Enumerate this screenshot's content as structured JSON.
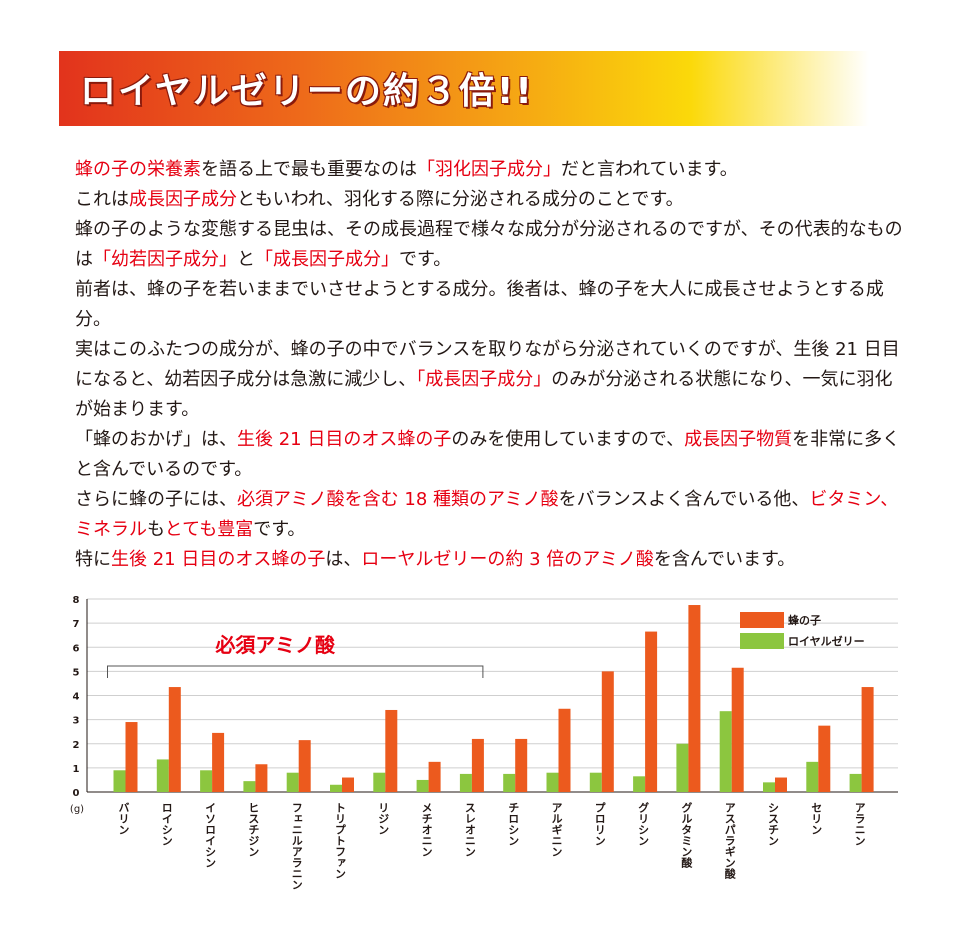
{
  "header": {
    "title": "ロイヤルゼリーの約３倍!!"
  },
  "colors": {
    "red": "#e60012",
    "orange": "#ec5a1e",
    "green": "#8cc63f"
  },
  "paragraphs": [
    {
      "id": "p1",
      "runs": [
        {
          "t": "蜂の子の栄養素",
          "red": true
        },
        {
          "t": "を語る上で最も重要なのは"
        },
        {
          "t": "「羽化因子成分」",
          "red": true
        },
        {
          "t": "だと言われています。"
        }
      ]
    },
    {
      "id": "p2",
      "runs": [
        {
          "t": "これは"
        },
        {
          "t": "成長因子成分",
          "red": true
        },
        {
          "t": "ともいわれ、羽化する際に分泌される成分のことです。"
        }
      ]
    },
    {
      "id": "p3",
      "runs": [
        {
          "t": "蜂の子のような変態する昆虫は、その成長過程で様々な成分が分泌されるのですが、その代表的なものは"
        },
        {
          "t": "「幼若因子成分」",
          "red": true
        },
        {
          "t": "と"
        },
        {
          "t": "「成長因子成分」",
          "red": true
        },
        {
          "t": "です。"
        }
      ]
    },
    {
      "id": "p4",
      "runs": [
        {
          "t": "前者は、蜂の子を若いままでいさせようとする成分。後者は、蜂の子を大人に成長させようとする成分。"
        }
      ]
    },
    {
      "id": "p5",
      "runs": [
        {
          "t": "実はこのふたつの成分が、蜂の子の中でバランスを取りながら分泌されていくのですが、生後 21 日目になると、幼若因子成分は急激に減少し、"
        },
        {
          "t": "「成長因子成分」",
          "red": true
        },
        {
          "t": "のみが分泌される状態になり、一気に羽化が始まります。"
        }
      ]
    },
    {
      "id": "p6",
      "runs": [
        {
          "t": "「蜂のおかげ」は、"
        },
        {
          "t": "生後 21 日目のオス蜂の子",
          "red": true
        },
        {
          "t": "のみを使用していますので、"
        },
        {
          "t": "成長因子物質",
          "red": true
        },
        {
          "t": "を非常に多くと含んでいるのです。"
        }
      ]
    },
    {
      "id": "p7",
      "runs": [
        {
          "t": "さらに蜂の子には、"
        },
        {
          "t": "必須アミノ酸を含む 18 種類のアミノ酸",
          "red": true
        },
        {
          "t": "をバランスよく含んでいる他、"
        },
        {
          "t": "ビタミン、ミネラル",
          "red": true
        },
        {
          "t": "も"
        },
        {
          "t": "とても豊富",
          "red": true
        },
        {
          "t": "です。"
        }
      ]
    },
    {
      "id": "p8",
      "runs": [
        {
          "t": "特に"
        },
        {
          "t": "生後 21 日目のオス蜂の子",
          "red": true
        },
        {
          "t": "は、"
        },
        {
          "t": "ローヤルゼリーの約 3 倍のアミノ酸",
          "red": true
        },
        {
          "t": "を含んでいます。"
        }
      ]
    }
  ],
  "chart_data": {
    "type": "bar",
    "unit_label": "(g)",
    "ylim": [
      0,
      8
    ],
    "yticks": [
      "0",
      "1",
      "2",
      "3",
      "4",
      "5",
      "6",
      "7",
      "8"
    ],
    "grid": true,
    "legend_position": "top-right",
    "categories": [
      "バリン",
      "ロイシン",
      "イソロイシン",
      "ヒスチジン",
      "フェニルアラニン",
      "トリプトファン",
      "リジン",
      "メチオニン",
      "スレオニン",
      "チロシン",
      "アルギニン",
      "プロリン",
      "グリシン",
      "グルタミン酸",
      "アスパラギン酸",
      "シスチン",
      "セリン",
      "アラニン"
    ],
    "series": [
      {
        "name": "ロイヤルゼリー",
        "color": "#8cc63f",
        "values": [
          0.9,
          1.35,
          0.9,
          0.45,
          0.8,
          0.3,
          0.8,
          0.5,
          0.75,
          0.75,
          0.8,
          0.8,
          0.65,
          2.0,
          3.35,
          0.4,
          1.25,
          0.75
        ]
      },
      {
        "name": "蜂の子",
        "color": "#ec5a1e",
        "values": [
          2.9,
          4.35,
          2.45,
          1.15,
          2.15,
          0.6,
          3.4,
          1.25,
          2.2,
          2.2,
          3.45,
          5.0,
          6.65,
          7.75,
          5.15,
          0.6,
          2.75,
          4.35
        ]
      }
    ],
    "legend_order": [
      "蜂の子",
      "ロイヤルゼリー"
    ],
    "bracket": {
      "label": "必須アミノ酸",
      "from": "バリン",
      "to": "スレオニン"
    }
  }
}
